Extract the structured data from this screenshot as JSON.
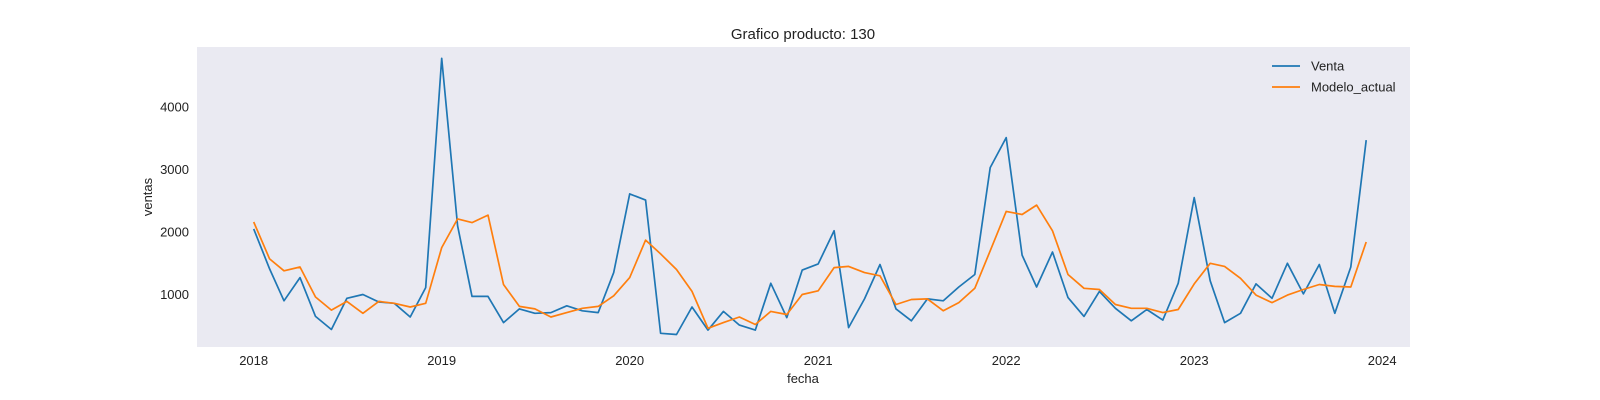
{
  "chart_data": {
    "type": "line",
    "title": "Grafico producto: 130",
    "xlabel": "fecha",
    "ylabel": "ventas",
    "xlim": [
      "2017-09-13",
      "2024-02-24"
    ],
    "ylim": [
      150,
      4950
    ],
    "x_ticks": [
      "2018",
      "2019",
      "2020",
      "2021",
      "2022",
      "2023",
      "2024"
    ],
    "y_ticks": [
      1000,
      2000,
      3000,
      4000
    ],
    "grid": false,
    "legend_position": "top-right",
    "x": [
      "2018-01",
      "2018-02",
      "2018-03",
      "2018-04",
      "2018-05",
      "2018-06",
      "2018-07",
      "2018-08",
      "2018-09",
      "2018-10",
      "2018-11",
      "2018-12",
      "2019-01",
      "2019-02",
      "2019-03",
      "2019-04",
      "2019-05",
      "2019-06",
      "2019-07",
      "2019-08",
      "2019-09",
      "2019-10",
      "2019-11",
      "2019-12",
      "2020-01",
      "2020-02",
      "2020-03",
      "2020-04",
      "2020-05",
      "2020-06",
      "2020-07",
      "2020-08",
      "2020-09",
      "2020-10",
      "2020-11",
      "2020-12",
      "2021-01",
      "2021-02",
      "2021-03",
      "2021-04",
      "2021-05",
      "2021-06",
      "2021-07",
      "2021-08",
      "2021-09",
      "2021-10",
      "2021-11",
      "2021-12",
      "2022-01",
      "2022-02",
      "2022-03",
      "2022-04",
      "2022-05",
      "2022-06",
      "2022-07",
      "2022-08",
      "2022-09",
      "2022-10",
      "2022-11",
      "2022-12",
      "2023-01",
      "2023-02",
      "2023-03",
      "2023-04",
      "2023-05",
      "2023-06",
      "2023-07",
      "2023-08",
      "2023-09",
      "2023-10",
      "2023-11",
      "2023-12"
    ],
    "series": [
      {
        "name": "Venta",
        "color": "#1f77b4",
        "values": [
          2040,
          1400,
          890,
          1260,
          640,
          430,
          930,
          990,
          870,
          850,
          630,
          1100,
          4770,
          2090,
          960,
          960,
          540,
          760,
          690,
          700,
          810,
          730,
          700,
          1340,
          2600,
          2500,
          370,
          350,
          790,
          420,
          720,
          500,
          420,
          1170,
          620,
          1380,
          1480,
          2010,
          460,
          920,
          1470,
          760,
          570,
          920,
          890,
          1110,
          1310,
          3020,
          3500,
          1620,
          1110,
          1670,
          940,
          640,
          1040,
          770,
          570,
          750,
          580,
          1170,
          2540,
          1210,
          540,
          690,
          1160,
          930,
          1490,
          1000,
          1470,
          690,
          1430,
          3460
        ]
      },
      {
        "name": "Modelo_actual",
        "color": "#ff7f0e",
        "values": [
          2150,
          1560,
          1370,
          1430,
          950,
          740,
          880,
          690,
          880,
          850,
          790,
          850,
          1740,
          2200,
          2140,
          2260,
          1150,
          800,
          760,
          630,
          700,
          770,
          800,
          970,
          1260,
          1860,
          1640,
          1390,
          1040,
          450,
          540,
          630,
          510,
          720,
          670,
          990,
          1050,
          1420,
          1440,
          1340,
          1290,
          830,
          910,
          920,
          730,
          860,
          1090,
          1690,
          2320,
          2270,
          2420,
          2010,
          1310,
          1090,
          1070,
          830,
          770,
          770,
          700,
          750,
          1160,
          1490,
          1440,
          1250,
          980,
          860,
          980,
          1070,
          1150,
          1120,
          1110,
          1830
        ]
      }
    ]
  }
}
